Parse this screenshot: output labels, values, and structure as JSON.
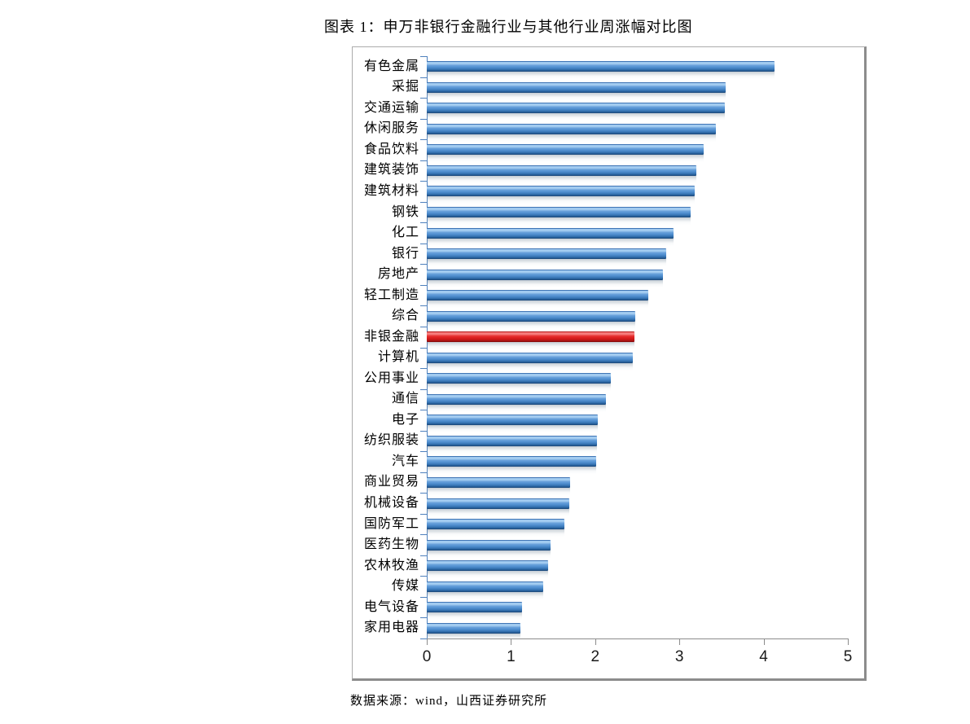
{
  "title": "图表 1：申万非银行金融行业与其他行业周涨幅对比图",
  "source_note": "数据来源：wind，山西证券研究所",
  "colors": {
    "bar_blue": "#4a86c8",
    "bar_highlight_red": "#e02222",
    "category_axis": "#4f81bd",
    "value_axis": "#8c8c8c",
    "text": "#000000",
    "background": "#ffffff"
  },
  "chart_data": {
    "type": "bar",
    "orientation": "horizontal",
    "title": "图表 1：申万非银行金融行业与其他行业周涨幅对比图",
    "xlabel": "",
    "ylabel": "",
    "xlim": [
      0,
      5
    ],
    "x_ticks": [
      0,
      1,
      2,
      3,
      4,
      5
    ],
    "grid": "off",
    "legend": "none",
    "highlight_category": "非银金融",
    "highlight_index": 13,
    "categories": [
      "有色金属",
      "采掘",
      "交通运输",
      "休闲服务",
      "食品饮料",
      "建筑装饰",
      "建筑材料",
      "钢铁",
      "化工",
      "银行",
      "房地产",
      "轻工制造",
      "综合",
      "非银金融",
      "计算机",
      "公用事业",
      "通信",
      "电子",
      "纺织服装",
      "汽车",
      "商业贸易",
      "机械设备",
      "国防军工",
      "医药生物",
      "农林牧渔",
      "传媒",
      "电气设备",
      "家用电器"
    ],
    "values": [
      4.13,
      3.55,
      3.54,
      3.43,
      3.29,
      3.2,
      3.18,
      3.13,
      2.93,
      2.84,
      2.8,
      2.63,
      2.48,
      2.47,
      2.45,
      2.19,
      2.13,
      2.03,
      2.02,
      2.01,
      1.7,
      1.69,
      1.63,
      1.47,
      1.44,
      1.38,
      1.13,
      1.11
    ]
  }
}
